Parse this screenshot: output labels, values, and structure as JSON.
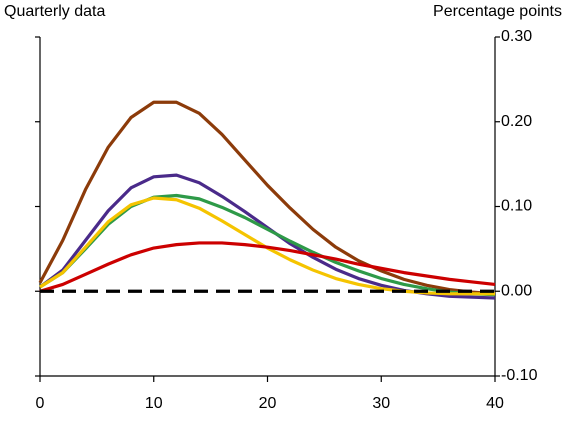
{
  "chart_data": {
    "type": "line",
    "left_label": "Quarterly data",
    "right_label": "Percentage points",
    "x": [
      0,
      2,
      4,
      6,
      8,
      10,
      12,
      14,
      16,
      18,
      20,
      22,
      24,
      26,
      28,
      30,
      32,
      34,
      36,
      38,
      40
    ],
    "series": [
      {
        "color": "#8c3b0a",
        "values": [
          0.01,
          0.06,
          0.12,
          0.17,
          0.205,
          0.223,
          0.223,
          0.21,
          0.185,
          0.155,
          0.125,
          0.098,
          0.073,
          0.052,
          0.036,
          0.024,
          0.014,
          0.007,
          0.002,
          -0.001,
          -0.003
        ]
      },
      {
        "color": "#4a2a8a",
        "values": [
          0.005,
          0.025,
          0.06,
          0.095,
          0.122,
          0.135,
          0.137,
          0.128,
          0.112,
          0.094,
          0.075,
          0.056,
          0.04,
          0.026,
          0.015,
          0.007,
          0.001,
          -0.003,
          -0.006,
          -0.007,
          -0.008
        ]
      },
      {
        "color": "#2e9a48",
        "values": [
          0.005,
          0.022,
          0.05,
          0.079,
          0.1,
          0.111,
          0.113,
          0.109,
          0.099,
          0.087,
          0.073,
          0.059,
          0.046,
          0.034,
          0.024,
          0.015,
          0.008,
          0.003,
          -0.001,
          -0.003,
          -0.004
        ]
      },
      {
        "color": "#f5c400",
        "values": [
          0.005,
          0.022,
          0.052,
          0.082,
          0.102,
          0.11,
          0.108,
          0.098,
          0.083,
          0.067,
          0.051,
          0.037,
          0.025,
          0.015,
          0.008,
          0.003,
          0,
          -0.002,
          -0.003,
          -0.003,
          -0.003
        ]
      },
      {
        "color": "#cc0000",
        "values": [
          0,
          0.008,
          0.02,
          0.032,
          0.043,
          0.051,
          0.055,
          0.057,
          0.057,
          0.055,
          0.052,
          0.048,
          0.043,
          0.038,
          0.032,
          0.027,
          0.022,
          0.018,
          0.014,
          0.011,
          0.008
        ]
      },
      {
        "color": "#000000",
        "dashed": true,
        "values": [
          0,
          0,
          0,
          0,
          0,
          0,
          0,
          0,
          0,
          0,
          0,
          0,
          0,
          0,
          0,
          0,
          0,
          0,
          0,
          0,
          0
        ]
      }
    ],
    "xlim": [
      0,
      40
    ],
    "xticks": [
      0,
      10,
      20,
      30,
      40
    ],
    "ylim": [
      -0.1,
      0.3
    ],
    "yticks": [
      {
        "value": -0.1,
        "label": "-0.10"
      },
      {
        "value": 0,
        "label": "0.00"
      },
      {
        "value": 0.1,
        "label": "0.10"
      },
      {
        "value": 0.2,
        "label": "0.20"
      },
      {
        "value": 0.3,
        "label": "0.30"
      }
    ]
  }
}
